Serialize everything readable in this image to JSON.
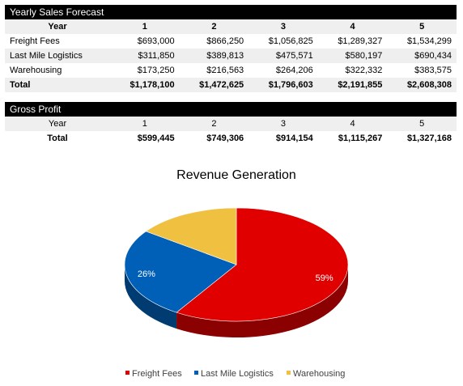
{
  "sales": {
    "title": "Yearly Sales Forecast",
    "header": [
      "Year",
      "1",
      "2",
      "3",
      "4",
      "5"
    ],
    "rows": [
      [
        "Freight Fees",
        "$693,000",
        "$866,250",
        "$1,056,825",
        "$1,289,327",
        "$1,534,299"
      ],
      [
        "Last Mile Logistics",
        "$311,850",
        "$389,813",
        "$475,571",
        "$580,197",
        "$690,434"
      ],
      [
        "Warehousing",
        "$173,250",
        "$216,563",
        "$264,206",
        "$322,332",
        "$383,575"
      ]
    ],
    "total": [
      "Total",
      "$1,178,100",
      "$1,472,625",
      "$1,796,603",
      "$2,191,855",
      "$2,608,308"
    ]
  },
  "profit": {
    "title": "Gross Profit",
    "header": [
      "Year",
      "1",
      "2",
      "3",
      "4",
      "5"
    ],
    "total": [
      "Total",
      "$599,445",
      "$749,306",
      "$914,154",
      "$1,115,267",
      "$1,327,168"
    ]
  },
  "chart_data": {
    "type": "pie",
    "title": "Revenue Generation",
    "categories": [
      "Freight Fees",
      "Last Mile Logistics",
      "Warehousing"
    ],
    "values": [
      59,
      26,
      15
    ],
    "labels": [
      "59%",
      "26%",
      ""
    ],
    "colors": [
      "#e00000",
      "#0060b8",
      "#f0c040"
    ],
    "legend_position": "bottom",
    "style": "3d"
  }
}
